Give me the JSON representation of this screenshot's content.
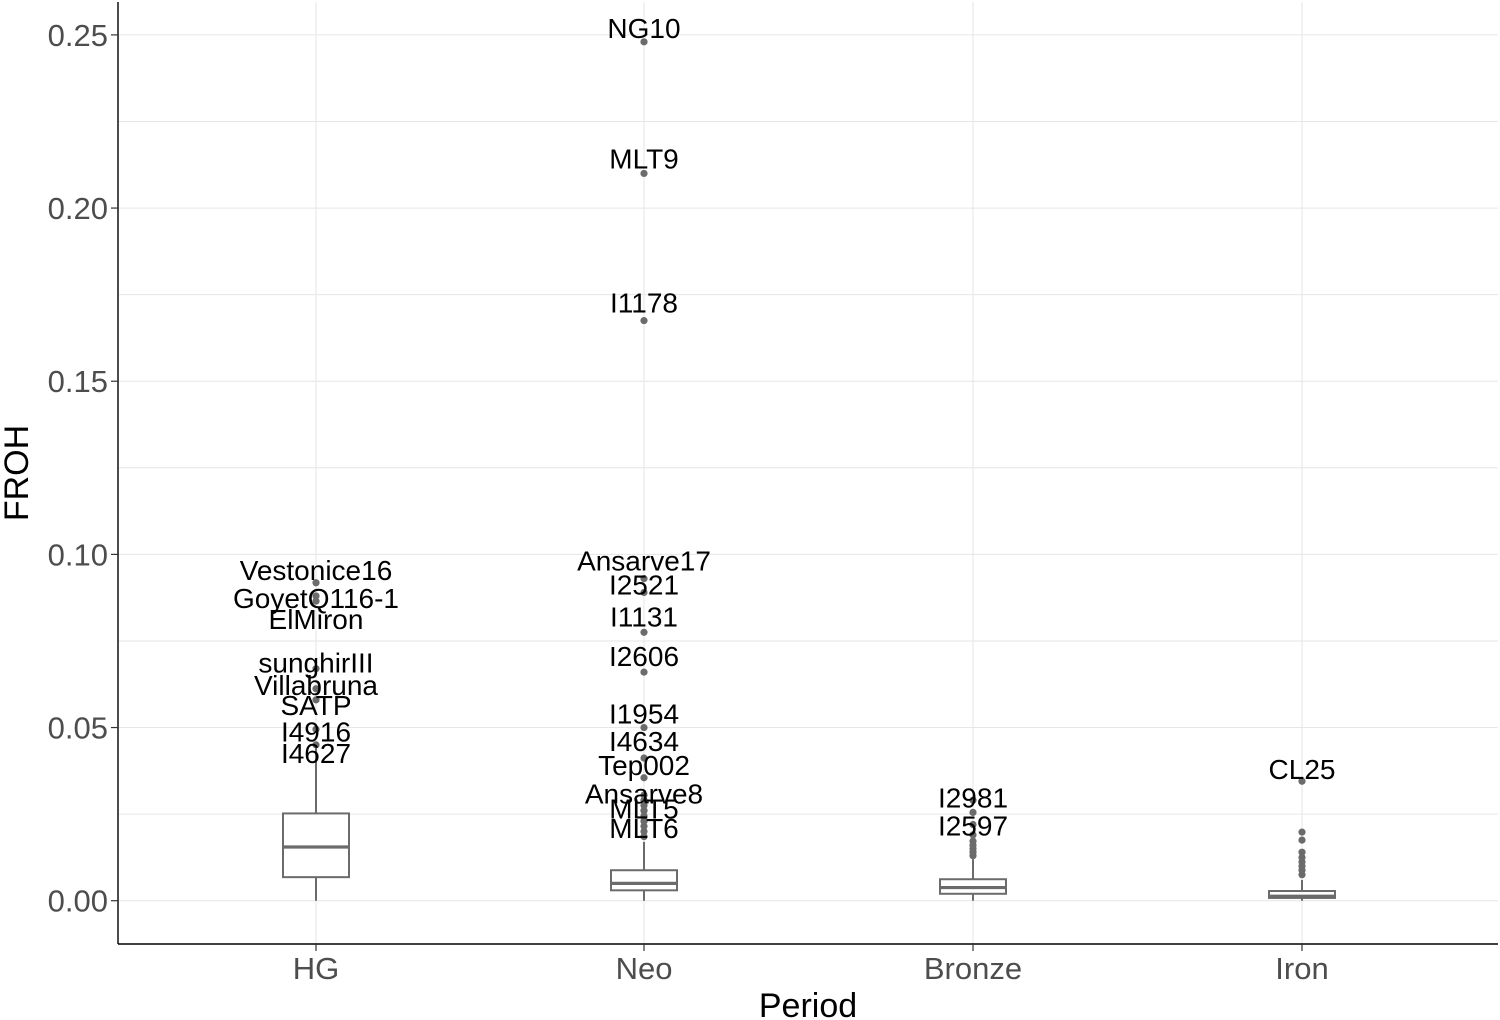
{
  "chart_data": {
    "type": "box",
    "xlabel": "Period",
    "ylabel": "FROH",
    "categories": [
      "HG",
      "Neo",
      "Bronze",
      "Iron"
    ],
    "ylim": [
      -0.0125,
      0.2595
    ],
    "yticks": [
      0.0,
      0.05,
      0.1,
      0.15,
      0.2,
      0.25
    ],
    "ytick_labels": [
      "0.00",
      "0.05",
      "0.10",
      "0.15",
      "0.20",
      "0.25"
    ],
    "grid": true,
    "boxes": [
      {
        "category": "HG",
        "q1": 0.0068,
        "median": 0.0155,
        "q3": 0.0252,
        "whisker_low": 0.0,
        "whisker_high": 0.045,
        "outliers": [],
        "labeled_points": [
          {
            "label": "Vestonice16",
            "y": 0.0918
          },
          {
            "label": "GoyetQ116-1",
            "y": 0.088
          },
          {
            "label": "ElMiron",
            "y": 0.0865
          },
          {
            "label": "sunghirIII",
            "y": 0.067
          },
          {
            "label": "Villabruna",
            "y": 0.0612
          },
          {
            "label": "SATP",
            "y": 0.058
          },
          {
            "label": "I4916",
            "y": 0.0495
          },
          {
            "label": "I4627",
            "y": 0.045
          }
        ]
      },
      {
        "category": "Neo",
        "q1": 0.003,
        "median": 0.005,
        "q3": 0.0088,
        "whisker_low": 0.0,
        "whisker_high": 0.017,
        "outliers": [
          0.0185,
          0.02,
          0.0215,
          0.023,
          0.0245,
          0.026,
          0.0275,
          0.029,
          0.0305
        ],
        "labeled_points": [
          {
            "label": "NG10",
            "y": 0.248
          },
          {
            "label": "MLT9",
            "y": 0.21
          },
          {
            "label": "I1178",
            "y": 0.1675
          },
          {
            "label": "Ansarve17",
            "y": 0.093
          },
          {
            "label": "I2521",
            "y": 0.089
          },
          {
            "label": "I1131",
            "y": 0.0775
          },
          {
            "label": "I2606",
            "y": 0.066
          },
          {
            "label": "I1954",
            "y": 0.05
          },
          {
            "label": "I4634",
            "y": 0.0412
          },
          {
            "label": "Tep002",
            "y": 0.0355
          },
          {
            "label": "Ansarve8",
            "y": 0.029
          },
          {
            "label": "MLT5",
            "y": 0.026
          },
          {
            "label": "MLT6",
            "y": 0.023
          }
        ]
      },
      {
        "category": "Bronze",
        "q1": 0.002,
        "median": 0.0038,
        "q3": 0.0062,
        "whisker_low": 0.0,
        "whisker_high": 0.012,
        "outliers": [
          0.013,
          0.014,
          0.015,
          0.016,
          0.0172,
          0.019,
          0.022
        ],
        "labeled_points": [
          {
            "label": "I2981",
            "y": 0.029
          },
          {
            "label": "I2597",
            "y": 0.0255
          }
        ]
      },
      {
        "category": "Iron",
        "q1": 0.0008,
        "median": 0.0013,
        "q3": 0.0028,
        "whisker_low": 0.0,
        "whisker_high": 0.006,
        "outliers": [
          0.0075,
          0.0088,
          0.01,
          0.0112,
          0.0125,
          0.014,
          0.0175,
          0.0198
        ],
        "labeled_points": [
          {
            "label": "CL25",
            "y": 0.0345
          }
        ]
      }
    ]
  }
}
